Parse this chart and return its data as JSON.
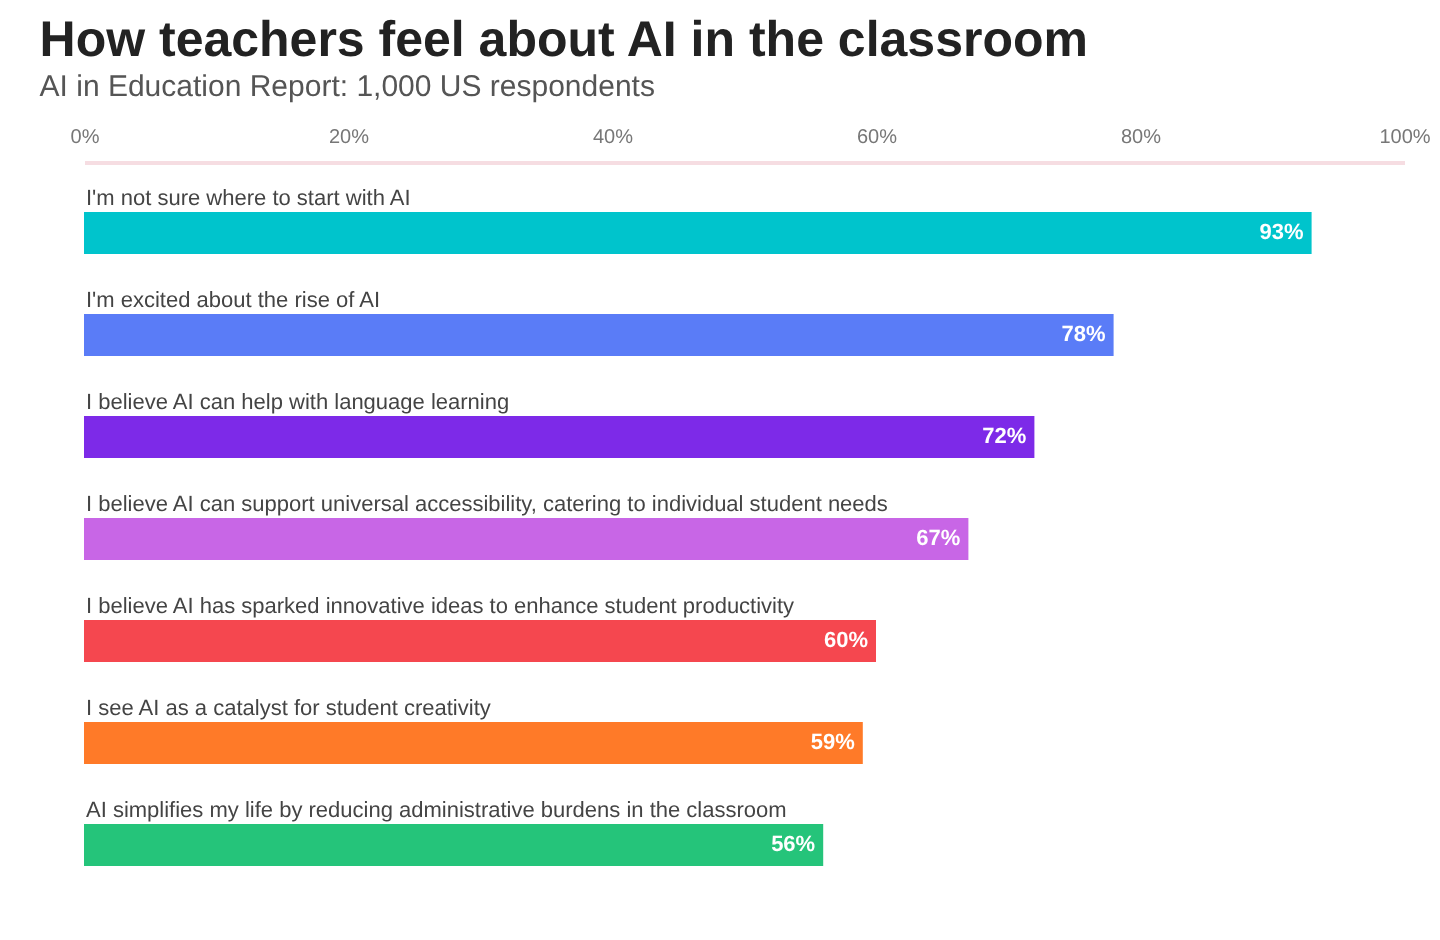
{
  "chart_data": {
    "type": "bar",
    "orientation": "horizontal",
    "title": "How teachers feel about AI in the classroom",
    "subtitle": "AI in Education Report: 1,000 US respondents",
    "categories": [
      "I'm not sure where to start with AI",
      "I'm excited about the rise of AI",
      "I believe AI can help with language learning",
      "I believe AI can support universal accessibility, catering to individual student needs",
      "I believe AI has sparked innovative ideas to enhance student productivity",
      "I see AI as a catalyst for student creativity",
      "AI simplifies my life by reducing administrative burdens in the classroom"
    ],
    "values": [
      93,
      78,
      72,
      67,
      60,
      59,
      56
    ],
    "value_labels": [
      "93%",
      "78%",
      "72%",
      "67%",
      "60%",
      "59%",
      "56%"
    ],
    "colors": [
      "#00c4cc",
      "#5a7cf7",
      "#7d2ae8",
      "#c866e6",
      "#f5474f",
      "#ff7a28",
      "#25c47a"
    ],
    "xlim": [
      0,
      100
    ],
    "xticks": [
      {
        "value": 0,
        "label": "0%"
      },
      {
        "value": 20,
        "label": "20%"
      },
      {
        "value": 40,
        "label": "40%"
      },
      {
        "value": 60,
        "label": "60%"
      },
      {
        "value": 80,
        "label": "80%"
      },
      {
        "value": 100,
        "label": "100%"
      }
    ],
    "grid": false
  }
}
